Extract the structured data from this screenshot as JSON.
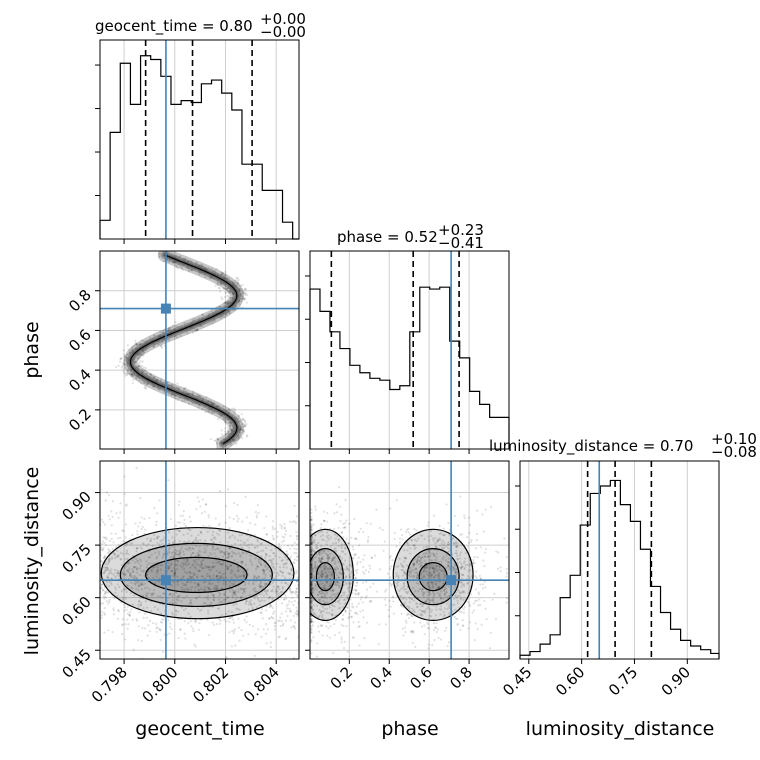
{
  "chart_data": {
    "type": "corner",
    "parameters": [
      "geocent_time",
      "phase",
      "luminosity_distance"
    ],
    "truths": {
      "geocent_time": 0.79965,
      "phase": 0.71,
      "luminosity_distance": 0.65
    },
    "titles": {
      "geocent_time": {
        "lhs": "geocent_time = 0.80",
        "plus": "+0.00",
        "minus": "−0.00"
      },
      "phase": {
        "lhs": "phase = 0.52",
        "plus": "+0.23",
        "minus": "−0.41"
      },
      "luminosity_distance": {
        "lhs": "luminosity_distance = 0.70",
        "plus": "+0.10",
        "minus": "−0.08"
      }
    },
    "axes": {
      "geocent_time": {
        "label": "geocent_time",
        "range": [
          0.79705,
          0.8049
        ],
        "ticks": [
          0.798,
          0.8,
          0.802,
          0.804
        ],
        "tick_labels": [
          "0.798",
          "0.800",
          "0.802",
          "0.804"
        ]
      },
      "phase": {
        "label": "phase",
        "range": [
          0.003,
          1.0
        ],
        "ticks": [
          0.2,
          0.4,
          0.6,
          0.8
        ],
        "tick_labels": [
          "0.2",
          "0.4",
          "0.6",
          "0.8"
        ]
      },
      "luminosity_distance": {
        "label": "luminosity_distance",
        "range": [
          0.425,
          0.99
        ],
        "ticks": [
          0.45,
          0.6,
          0.75,
          0.9
        ],
        "tick_labels": [
          "0.45",
          "0.60",
          "0.75",
          "0.90"
        ]
      }
    },
    "histograms": {
      "geocent_time": {
        "quantiles": [
          0.79885,
          0.8007,
          0.80305
        ],
        "bin_edges": [
          0.79705,
          0.79745,
          0.79785,
          0.79825,
          0.79865,
          0.79905,
          0.79945,
          0.79985,
          0.80025,
          0.80065,
          0.80105,
          0.80145,
          0.80185,
          0.80225,
          0.80265,
          0.80305,
          0.80345,
          0.80385,
          0.80425,
          0.80465,
          0.8049
        ],
        "counts": [
          0.1,
          0.57,
          0.94,
          0.72,
          0.98,
          0.96,
          0.87,
          0.72,
          0.74,
          0.73,
          0.83,
          0.85,
          0.78,
          0.69,
          0.4,
          0.4,
          0.26,
          0.26,
          0.09,
          0.0
        ]
      },
      "phase": {
        "quantiles": [
          0.11,
          0.52,
          0.75
        ],
        "bin_edges": [
          0.003,
          0.053,
          0.103,
          0.153,
          0.203,
          0.253,
          0.303,
          0.353,
          0.403,
          0.453,
          0.503,
          0.553,
          0.603,
          0.653,
          0.703,
          0.753,
          0.803,
          0.853,
          0.903,
          0.953,
          1.0
        ],
        "counts": [
          0.86,
          0.74,
          0.63,
          0.54,
          0.45,
          0.41,
          0.38,
          0.37,
          0.32,
          0.34,
          0.63,
          0.87,
          0.86,
          0.87,
          0.58,
          0.49,
          0.31,
          0.24,
          0.17,
          0.17
        ]
      },
      "luminosity_distance": {
        "quantiles": [
          0.617,
          0.695,
          0.798
        ],
        "bin_edges": [
          0.425,
          0.4535,
          0.482,
          0.5105,
          0.539,
          0.5675,
          0.596,
          0.6245,
          0.653,
          0.6815,
          0.71,
          0.7385,
          0.767,
          0.7955,
          0.824,
          0.8525,
          0.881,
          0.9095,
          0.938,
          0.9665,
          0.99
        ],
        "counts": [
          0.02,
          0.04,
          0.08,
          0.13,
          0.33,
          0.45,
          0.72,
          0.89,
          0.93,
          0.96,
          0.83,
          0.74,
          0.59,
          0.39,
          0.25,
          0.16,
          0.1,
          0.07,
          0.05,
          0.03
        ]
      }
    },
    "samples_2d": [
      {
        "x": "geocent_time",
        "y": "phase"
      },
      {
        "x": "geocent_time",
        "y": "luminosity_distance"
      },
      {
        "x": "phase",
        "y": "luminosity_distance"
      }
    ],
    "grid": true
  }
}
